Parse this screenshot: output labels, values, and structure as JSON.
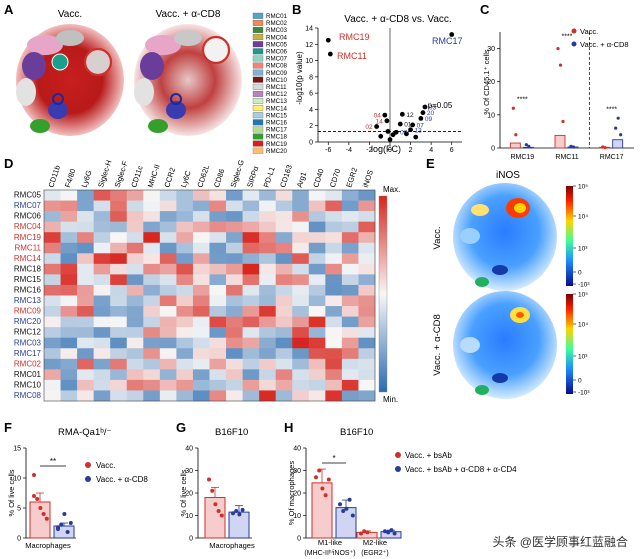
{
  "panels": {
    "A": "A",
    "B": "B",
    "C": "C",
    "D": "D",
    "E": "E",
    "F": "F",
    "G": "G",
    "H": "H"
  },
  "colors": {
    "red": "#d0302a",
    "blue": "#2a3a9a",
    "heat_hi": "#d7261e",
    "heat_mid": "#f7f7f7",
    "heat_lo": "#2a6bb0"
  },
  "panel_a": {
    "title_left": "Vacc.",
    "title_right": "Vacc. + α-CD8",
    "legend": [
      {
        "label": "RMC01",
        "color": "#4aa7c8"
      },
      {
        "label": "RMC02",
        "color": "#f08a5d"
      },
      {
        "label": "RMC03",
        "color": "#3a8a3a"
      },
      {
        "label": "RMC04",
        "color": "#c8b040"
      },
      {
        "label": "RMC05",
        "color": "#6a3d9a"
      },
      {
        "label": "RMC06",
        "color": "#1a9a8a"
      },
      {
        "label": "RMC07",
        "color": "#8dd3c7"
      },
      {
        "label": "RMC08",
        "color": "#fb8072"
      },
      {
        "label": "RMC09",
        "color": "#80b1d3"
      },
      {
        "label": "RMC10",
        "color": "#7a1515"
      },
      {
        "label": "RMC11",
        "color": "#d9d9d9"
      },
      {
        "label": "RMC12",
        "color": "#bc80bd"
      },
      {
        "label": "RMC13",
        "color": "#ccebc5"
      },
      {
        "label": "RMC14",
        "color": "#ffed6f"
      },
      {
        "label": "RMC15",
        "color": "#a6cee3"
      },
      {
        "label": "RMC16",
        "color": "#1f78b4"
      },
      {
        "label": "RMC17",
        "color": "#b2df8a"
      },
      {
        "label": "RMC18",
        "color": "#33a02c"
      },
      {
        "label": "RMC19",
        "color": "#e31a1c"
      },
      {
        "label": "RMC20",
        "color": "#fdbf6f"
      }
    ]
  },
  "panel_b": {
    "title": "Vacc. + α-CD8 vs. Vacc.",
    "ylabel": "-log10(p value)",
    "xlabel": "log(FC)",
    "threshold_label": "p=0.05",
    "xticks": [
      "-6",
      "-4",
      "-2",
      "0",
      "2",
      "4",
      "6"
    ],
    "yticks": [
      "0",
      "2",
      "4",
      "6",
      "8",
      "10",
      "12",
      "14"
    ],
    "labels": {
      "rmc19": "RMC19",
      "rmc11": "RMC11",
      "rmc17": "RMC17"
    },
    "point_labels": [
      "02",
      "04",
      "14",
      "01",
      "12",
      "03",
      "20",
      "09",
      "07",
      "13",
      "08"
    ]
  },
  "panel_c": {
    "ylabel": "% Of CD45.1⁺ cells",
    "legend": [
      "Vacc.",
      "Vacc. + α-CD8"
    ],
    "categories": [
      "RMC19",
      "RMC11",
      "RMC17"
    ],
    "yticks": [
      "0",
      "10",
      "20",
      "30"
    ],
    "sig": [
      "****",
      "****",
      "****"
    ]
  },
  "panel_d": {
    "columns": [
      "CD11b",
      "F4/80",
      "Ly6G",
      "Siglec-H",
      "Siglec-F",
      "CD11c",
      "MHC-II",
      "CCR2",
      "Ly6C",
      "CD62L",
      "CD86",
      "Siglec-G",
      "SIRPα",
      "PD-L1",
      "CD163",
      "Arg1",
      "CD40",
      "CD70",
      "EGR2",
      "iNOS"
    ],
    "rows": [
      {
        "label": "RMC05",
        "color": "#111"
      },
      {
        "label": "RMC07",
        "color": "#2a3a9a"
      },
      {
        "label": "RMC06",
        "color": "#111"
      },
      {
        "label": "RMC04",
        "color": "#d0302a"
      },
      {
        "label": "RMC19",
        "color": "#d0302a"
      },
      {
        "label": "RMC11",
        "color": "#d0302a"
      },
      {
        "label": "RMC14",
        "color": "#d0302a"
      },
      {
        "label": "RMC18",
        "color": "#111"
      },
      {
        "label": "RMC15",
        "color": "#111"
      },
      {
        "label": "RMC16",
        "color": "#111"
      },
      {
        "label": "RMC13",
        "color": "#2a3a9a"
      },
      {
        "label": "RMC09",
        "color": "#d0302a"
      },
      {
        "label": "RMC20",
        "color": "#2a3a9a"
      },
      {
        "label": "RMC12",
        "color": "#111"
      },
      {
        "label": "RMC03",
        "color": "#2a3a9a"
      },
      {
        "label": "RMC17",
        "color": "#2a3a9a"
      },
      {
        "label": "RMC02",
        "color": "#d0302a"
      },
      {
        "label": "RMC01",
        "color": "#111"
      },
      {
        "label": "RMC10",
        "color": "#111"
      },
      {
        "label": "RMC08",
        "color": "#2a3a9a"
      }
    ],
    "max_label": "Max.",
    "min_label": "Min."
  },
  "panel_e": {
    "title": "iNOS",
    "row1": "Vacc.",
    "row2": "Vacc. + α-CD8",
    "scale_ticks": [
      "10⁵",
      "10⁴",
      "10³",
      "0",
      "-10³"
    ]
  },
  "panel_f": {
    "title": "RMA-Qa1ᵇ/⁻",
    "ylabel": "% Of live cells",
    "xlabel": "Macrophages",
    "yticks": [
      "0",
      "5",
      "10",
      "15"
    ],
    "legend": [
      "Vacc.",
      "Vacc. + α-CD8"
    ],
    "sig": "**"
  },
  "panel_g": {
    "title": "B16F10",
    "ylabel": "% Of live cells",
    "xlabel": "Macrophages",
    "yticks": [
      "0",
      "10",
      "20",
      "30",
      "40"
    ]
  },
  "panel_h": {
    "title": "B16F10",
    "ylabel": "% Of macrophages",
    "yticks": [
      "0",
      "10",
      "20",
      "30",
      "40"
    ],
    "xlabel1": "M1-like",
    "xlabel1b": "(MHC-IIʰⁱiNOS⁺)",
    "xlabel2": "M2-like",
    "xlabel2b": "(EGR2⁺)",
    "legend": [
      "Vacc. + bsAb",
      "Vacc. + bsAb + α-CD8 + α-CD4"
    ],
    "sig": "*"
  },
  "watermark": "头条 @医学顾事红蓝融合",
  "chart_data": [
    {
      "type": "scatter",
      "panel": "B",
      "title": "Vacc. + α-CD8 vs. Vacc.",
      "xlabel": "log(FC)",
      "ylabel": "-log10(p value)",
      "xlim": [
        -7,
        7
      ],
      "ylim": [
        0,
        14
      ],
      "points": [
        {
          "x": -6.0,
          "y": 12.5,
          "label": "RMC19"
        },
        {
          "x": -5.8,
          "y": 10.8,
          "label": "RMC11"
        },
        {
          "x": 6.0,
          "y": 13.2,
          "label": "RMC17"
        },
        {
          "x": -1.3,
          "y": 1.9,
          "label": "02"
        },
        {
          "x": -0.5,
          "y": 3.3,
          "label": "04"
        },
        {
          "x": -0.3,
          "y": 2.6,
          "label": "14"
        },
        {
          "x": 3.4,
          "y": 4.3,
          "label": "03"
        },
        {
          "x": 3.2,
          "y": 3.6,
          "label": "20"
        },
        {
          "x": 3.0,
          "y": 2.9,
          "label": "09"
        },
        {
          "x": 2.2,
          "y": 2.1,
          "label": "07"
        },
        {
          "x": 2.0,
          "y": 1.5,
          "label": "13"
        },
        {
          "x": 1.2,
          "y": 3.4,
          "label": "12"
        },
        {
          "x": 1.0,
          "y": 2.2,
          "label": "01"
        },
        {
          "x": 0.6,
          "y": 1.2,
          "label": "08"
        },
        {
          "x": -0.9,
          "y": 0.7
        },
        {
          "x": 0.3,
          "y": 0.9
        },
        {
          "x": 1.6,
          "y": 1.0
        },
        {
          "x": 2.5,
          "y": 0.6
        },
        {
          "x": 0.0,
          "y": 0.3
        },
        {
          "x": -0.2,
          "y": 1.3
        }
      ]
    },
    {
      "type": "bar",
      "panel": "C",
      "ylabel": "% Of CD45.1⁺ cells",
      "categories": [
        "RMC19",
        "RMC11",
        "RMC17"
      ],
      "ylim": [
        0,
        35
      ],
      "series": [
        {
          "name": "Vacc.",
          "values": [
            1.5,
            3.8,
            0.2
          ]
        },
        {
          "name": "Vacc. + α-CD8",
          "values": [
            0.2,
            0.3,
            2.5
          ]
        }
      ]
    },
    {
      "type": "bar",
      "panel": "F",
      "ylabel": "% Of live cells",
      "categories": [
        "Macrophages"
      ],
      "ylim": [
        0,
        15
      ],
      "series": [
        {
          "name": "Vacc.",
          "values": [
            6.0
          ]
        },
        {
          "name": "Vacc. + α-CD8",
          "values": [
            2.0
          ]
        }
      ]
    },
    {
      "type": "bar",
      "panel": "G",
      "ylabel": "% Of live cells",
      "categories": [
        "Macrophages"
      ],
      "ylim": [
        0,
        40
      ],
      "series": [
        {
          "name": "Vacc.",
          "values": [
            18
          ]
        },
        {
          "name": "Vacc. + α-CD8",
          "values": [
            11.5
          ]
        }
      ]
    },
    {
      "type": "bar",
      "panel": "H",
      "ylabel": "% Of macrophages",
      "categories": [
        "M1-like",
        "M2-like"
      ],
      "ylim": [
        0,
        40
      ],
      "series": [
        {
          "name": "Vacc. + bsAb",
          "values": [
            24.5,
            2.5
          ]
        },
        {
          "name": "Vacc. + bsAb + α-CD8 + α-CD4",
          "values": [
            13.5,
            2.8
          ]
        }
      ]
    }
  ]
}
